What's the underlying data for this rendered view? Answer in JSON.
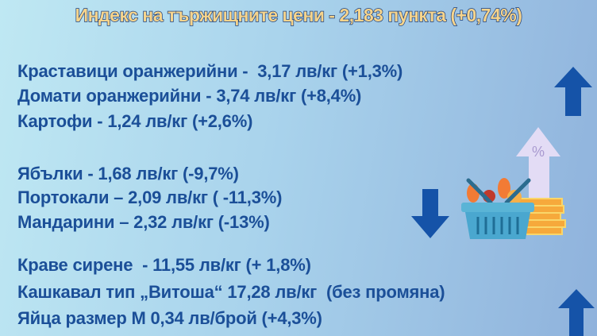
{
  "title": "Индекс на тържищните цени - 2,183 пункта (+0,74%)",
  "groups": [
    {
      "trend": "up",
      "items": [
        "Краставици оранжерийни -  3,17 лв/кг (+1,3%)",
        "Домати оранжерийни - 3,74 лв/кг (+8,4%)",
        "Картофи - 1,24 лв/кг (+2,6%)"
      ]
    },
    {
      "trend": "down",
      "items": [
        "Ябълки - 1,68 лв/кг (-9,7%)",
        "Портокали – 2,09 лв/кг ( -11,3%)",
        "Мандарини – 2,32 лв/кг (-13%)"
      ]
    },
    {
      "trend": "up",
      "items": [
        "Краве сирене  - 11,55 лв/кг (+ 1,8%)",
        "Кашкавал тип „Витоша“ 17,28 лв/кг  (без промяна)",
        "Яйца размер М 0,34 лв/брой (+4,3%)"
      ]
    }
  ],
  "illustration": {
    "percent_symbol": "%"
  },
  "colors": {
    "text": "#1b4f98",
    "arrow": "#1553a8",
    "title_fill": "#f6d48c",
    "title_stroke": "#1d3f7a"
  }
}
